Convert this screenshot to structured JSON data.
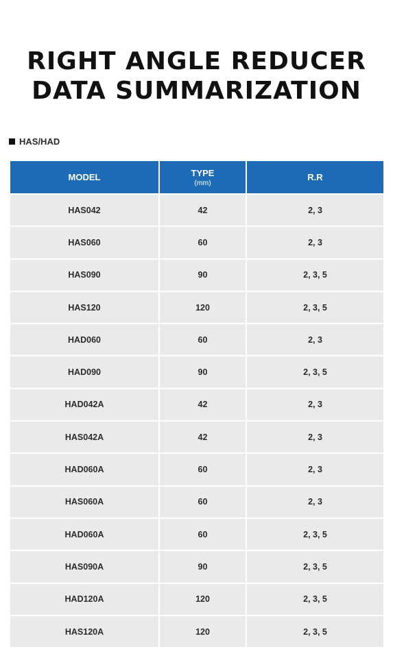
{
  "title": {
    "line1": "RIGHT ANGLE REDUCER",
    "line2": "DATA SUMMARIZATION"
  },
  "section_label": "HAS/HAD",
  "table": {
    "headers": {
      "model": "MODEL",
      "type": "TYPE",
      "type_unit": "(mm)",
      "rr": "R.R"
    },
    "rows": [
      {
        "model": "HAS042",
        "type": "42",
        "rr": "2, 3"
      },
      {
        "model": "HAS060",
        "type": "60",
        "rr": "2, 3"
      },
      {
        "model": "HAS090",
        "type": "90",
        "rr": "2, 3, 5"
      },
      {
        "model": "HAS120",
        "type": "120",
        "rr": "2, 3, 5"
      },
      {
        "model": "HAD060",
        "type": "60",
        "rr": "2, 3"
      },
      {
        "model": "HAD090",
        "type": "90",
        "rr": "2, 3, 5"
      },
      {
        "model": "HAD042A",
        "type": "42",
        "rr": "2, 3"
      },
      {
        "model": "HAS042A",
        "type": "42",
        "rr": "2, 3"
      },
      {
        "model": "HAD060A",
        "type": "60",
        "rr": "2, 3"
      },
      {
        "model": "HAS060A",
        "type": "60",
        "rr": "2, 3"
      },
      {
        "model": "HAD060A",
        "type": "60",
        "rr": "2, 3, 5"
      },
      {
        "model": "HAS090A",
        "type": "90",
        "rr": "2, 3, 5"
      },
      {
        "model": "HAD120A",
        "type": "120",
        "rr": "2, 3, 5"
      },
      {
        "model": "HAS120A",
        "type": "120",
        "rr": "2, 3, 5"
      }
    ]
  },
  "colors": {
    "header_bg": "#1e6cb7",
    "row_bg": "#e9eaec"
  }
}
